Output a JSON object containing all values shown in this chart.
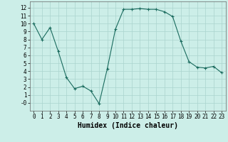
{
  "x": [
    0,
    1,
    2,
    3,
    4,
    5,
    6,
    7,
    8,
    9,
    10,
    11,
    12,
    13,
    14,
    15,
    16,
    17,
    18,
    19,
    20,
    21,
    22,
    23
  ],
  "y": [
    10,
    8,
    9.5,
    6.5,
    3.2,
    1.8,
    2.1,
    1.5,
    -0.1,
    4.3,
    9.3,
    11.8,
    11.8,
    11.9,
    11.8,
    11.8,
    11.5,
    10.9,
    7.8,
    5.2,
    4.5,
    4.4,
    4.6,
    3.8
  ],
  "line_color": "#1a6b5e",
  "marker": "+",
  "marker_size": 3,
  "marker_lw": 0.8,
  "bg_color": "#cceee8",
  "grid_color": "#aad4ce",
  "xlabel": "Humidex (Indice chaleur)",
  "xlabel_fontsize": 7,
  "ylim": [
    -1,
    12.8
  ],
  "xlim": [
    -0.5,
    23.5
  ],
  "yticks": [
    0,
    1,
    2,
    3,
    4,
    5,
    6,
    7,
    8,
    9,
    10,
    11,
    12
  ],
  "xticks": [
    0,
    1,
    2,
    3,
    4,
    5,
    6,
    7,
    8,
    9,
    10,
    11,
    12,
    13,
    14,
    15,
    16,
    17,
    18,
    19,
    20,
    21,
    22,
    23
  ],
  "tick_fontsize": 5.5,
  "line_width": 0.8,
  "figsize": [
    3.2,
    2.0
  ],
  "dpi": 100
}
